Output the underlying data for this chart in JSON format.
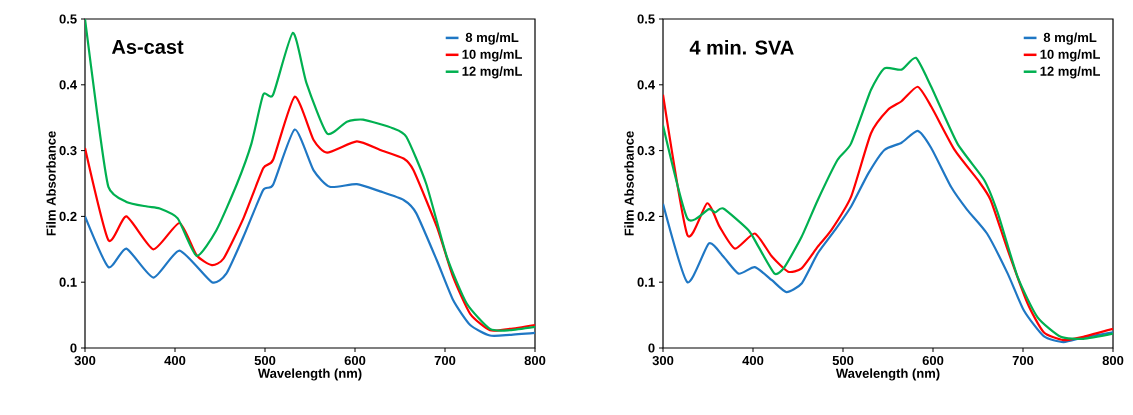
{
  "chart_data": [
    {
      "type": "line",
      "title": "As-cast",
      "xlabel": "Wavelength (nm)",
      "ylabel": "Film Absorbance",
      "xlim": [
        300,
        800
      ],
      "ylim": [
        0,
        0.5
      ],
      "xticks": [
        300,
        400,
        500,
        600,
        700,
        800
      ],
      "yticks": [
        0,
        0.1,
        0.2,
        0.3,
        0.4,
        0.5
      ],
      "grid": false,
      "legend": "top right",
      "marker": "none",
      "line_style": "solid",
      "series": [
        {
          "name": "8 mg/mL",
          "color": "#1f77c4",
          "x": [
            300,
            326,
            346,
            376,
            405,
            441,
            457,
            476,
            498,
            509,
            533,
            554,
            572,
            602,
            628,
            654,
            668,
            691,
            709,
            728,
            750,
            772,
            800
          ],
          "values": [
            0.2,
            0.123,
            0.151,
            0.107,
            0.148,
            0.1,
            0.113,
            0.169,
            0.24,
            0.248,
            0.332,
            0.27,
            0.245,
            0.249,
            0.238,
            0.225,
            0.205,
            0.133,
            0.073,
            0.035,
            0.019,
            0.02,
            0.023
          ]
        },
        {
          "name": "10 mg/mL",
          "color": "#ff0000",
          "x": [
            300,
            326,
            346,
            376,
            405,
            424,
            441,
            454,
            476,
            498,
            509,
            533,
            554,
            569,
            602,
            628,
            654,
            665,
            691,
            709,
            728,
            750,
            772,
            800
          ],
          "values": [
            0.304,
            0.164,
            0.2,
            0.15,
            0.19,
            0.141,
            0.126,
            0.136,
            0.197,
            0.273,
            0.286,
            0.382,
            0.316,
            0.297,
            0.314,
            0.301,
            0.288,
            0.27,
            0.184,
            0.108,
            0.052,
            0.027,
            0.029,
            0.035
          ]
        },
        {
          "name": "12 mg/mL",
          "color": "#00b050",
          "x": [
            300,
            313,
            326,
            346,
            369,
            383,
            403,
            424,
            446,
            469,
            485,
            498,
            509,
            531,
            546,
            569,
            591,
            609,
            642,
            657,
            679,
            702,
            724,
            750,
            772,
            800
          ],
          "values": [
            0.5,
            0.362,
            0.245,
            0.222,
            0.215,
            0.212,
            0.197,
            0.14,
            0.179,
            0.25,
            0.311,
            0.385,
            0.385,
            0.479,
            0.403,
            0.326,
            0.344,
            0.347,
            0.334,
            0.321,
            0.25,
            0.139,
            0.068,
            0.029,
            0.027,
            0.032
          ]
        }
      ]
    },
    {
      "type": "line",
      "title": "4 min. SVA",
      "xlabel": "Wavelength (nm)",
      "ylabel": "Film Absorbance",
      "xlim": [
        300,
        800
      ],
      "ylim": [
        0,
        0.5
      ],
      "xticks": [
        300,
        400,
        500,
        600,
        700,
        800
      ],
      "yticks": [
        0,
        0.1,
        0.2,
        0.3,
        0.4,
        0.5
      ],
      "grid": false,
      "legend": "top right",
      "marker": "none",
      "line_style": "solid",
      "series": [
        {
          "name": "8 mg/mL",
          "color": "#1f77c4",
          "x": [
            300,
            327,
            351,
            367,
            384,
            402,
            421,
            437,
            454,
            472,
            491,
            509,
            528,
            546,
            565,
            583,
            598,
            620,
            638,
            660,
            683,
            701,
            723,
            745,
            767,
            800
          ],
          "values": [
            0.219,
            0.1,
            0.159,
            0.139,
            0.113,
            0.123,
            0.103,
            0.085,
            0.098,
            0.144,
            0.179,
            0.215,
            0.265,
            0.301,
            0.312,
            0.33,
            0.304,
            0.245,
            0.21,
            0.174,
            0.113,
            0.057,
            0.018,
            0.009,
            0.016,
            0.024
          ]
        },
        {
          "name": "10 mg/mL",
          "color": "#ff0000",
          "x": [
            300,
            327,
            349,
            363,
            380,
            402,
            421,
            439,
            454,
            472,
            487,
            509,
            531,
            550,
            565,
            583,
            598,
            624,
            650,
            664,
            683,
            705,
            723,
            745,
            767,
            800
          ],
          "values": [
            0.385,
            0.172,
            0.22,
            0.184,
            0.151,
            0.174,
            0.139,
            0.116,
            0.121,
            0.154,
            0.179,
            0.23,
            0.326,
            0.362,
            0.375,
            0.397,
            0.367,
            0.301,
            0.255,
            0.225,
            0.149,
            0.068,
            0.024,
            0.012,
            0.017,
            0.029
          ]
        },
        {
          "name": "12 mg/mL",
          "color": "#00b050",
          "x": [
            300,
            327,
            351,
            358,
            367,
            395,
            406,
            424,
            435,
            454,
            472,
            494,
            509,
            531,
            546,
            565,
            581,
            598,
            627,
            657,
            672,
            694,
            716,
            742,
            767,
            800
          ],
          "values": [
            0.338,
            0.197,
            0.211,
            0.206,
            0.212,
            0.179,
            0.154,
            0.113,
            0.123,
            0.169,
            0.225,
            0.286,
            0.311,
            0.392,
            0.425,
            0.423,
            0.441,
            0.397,
            0.311,
            0.255,
            0.205,
            0.108,
            0.047,
            0.017,
            0.014,
            0.022
          ]
        }
      ]
    }
  ]
}
